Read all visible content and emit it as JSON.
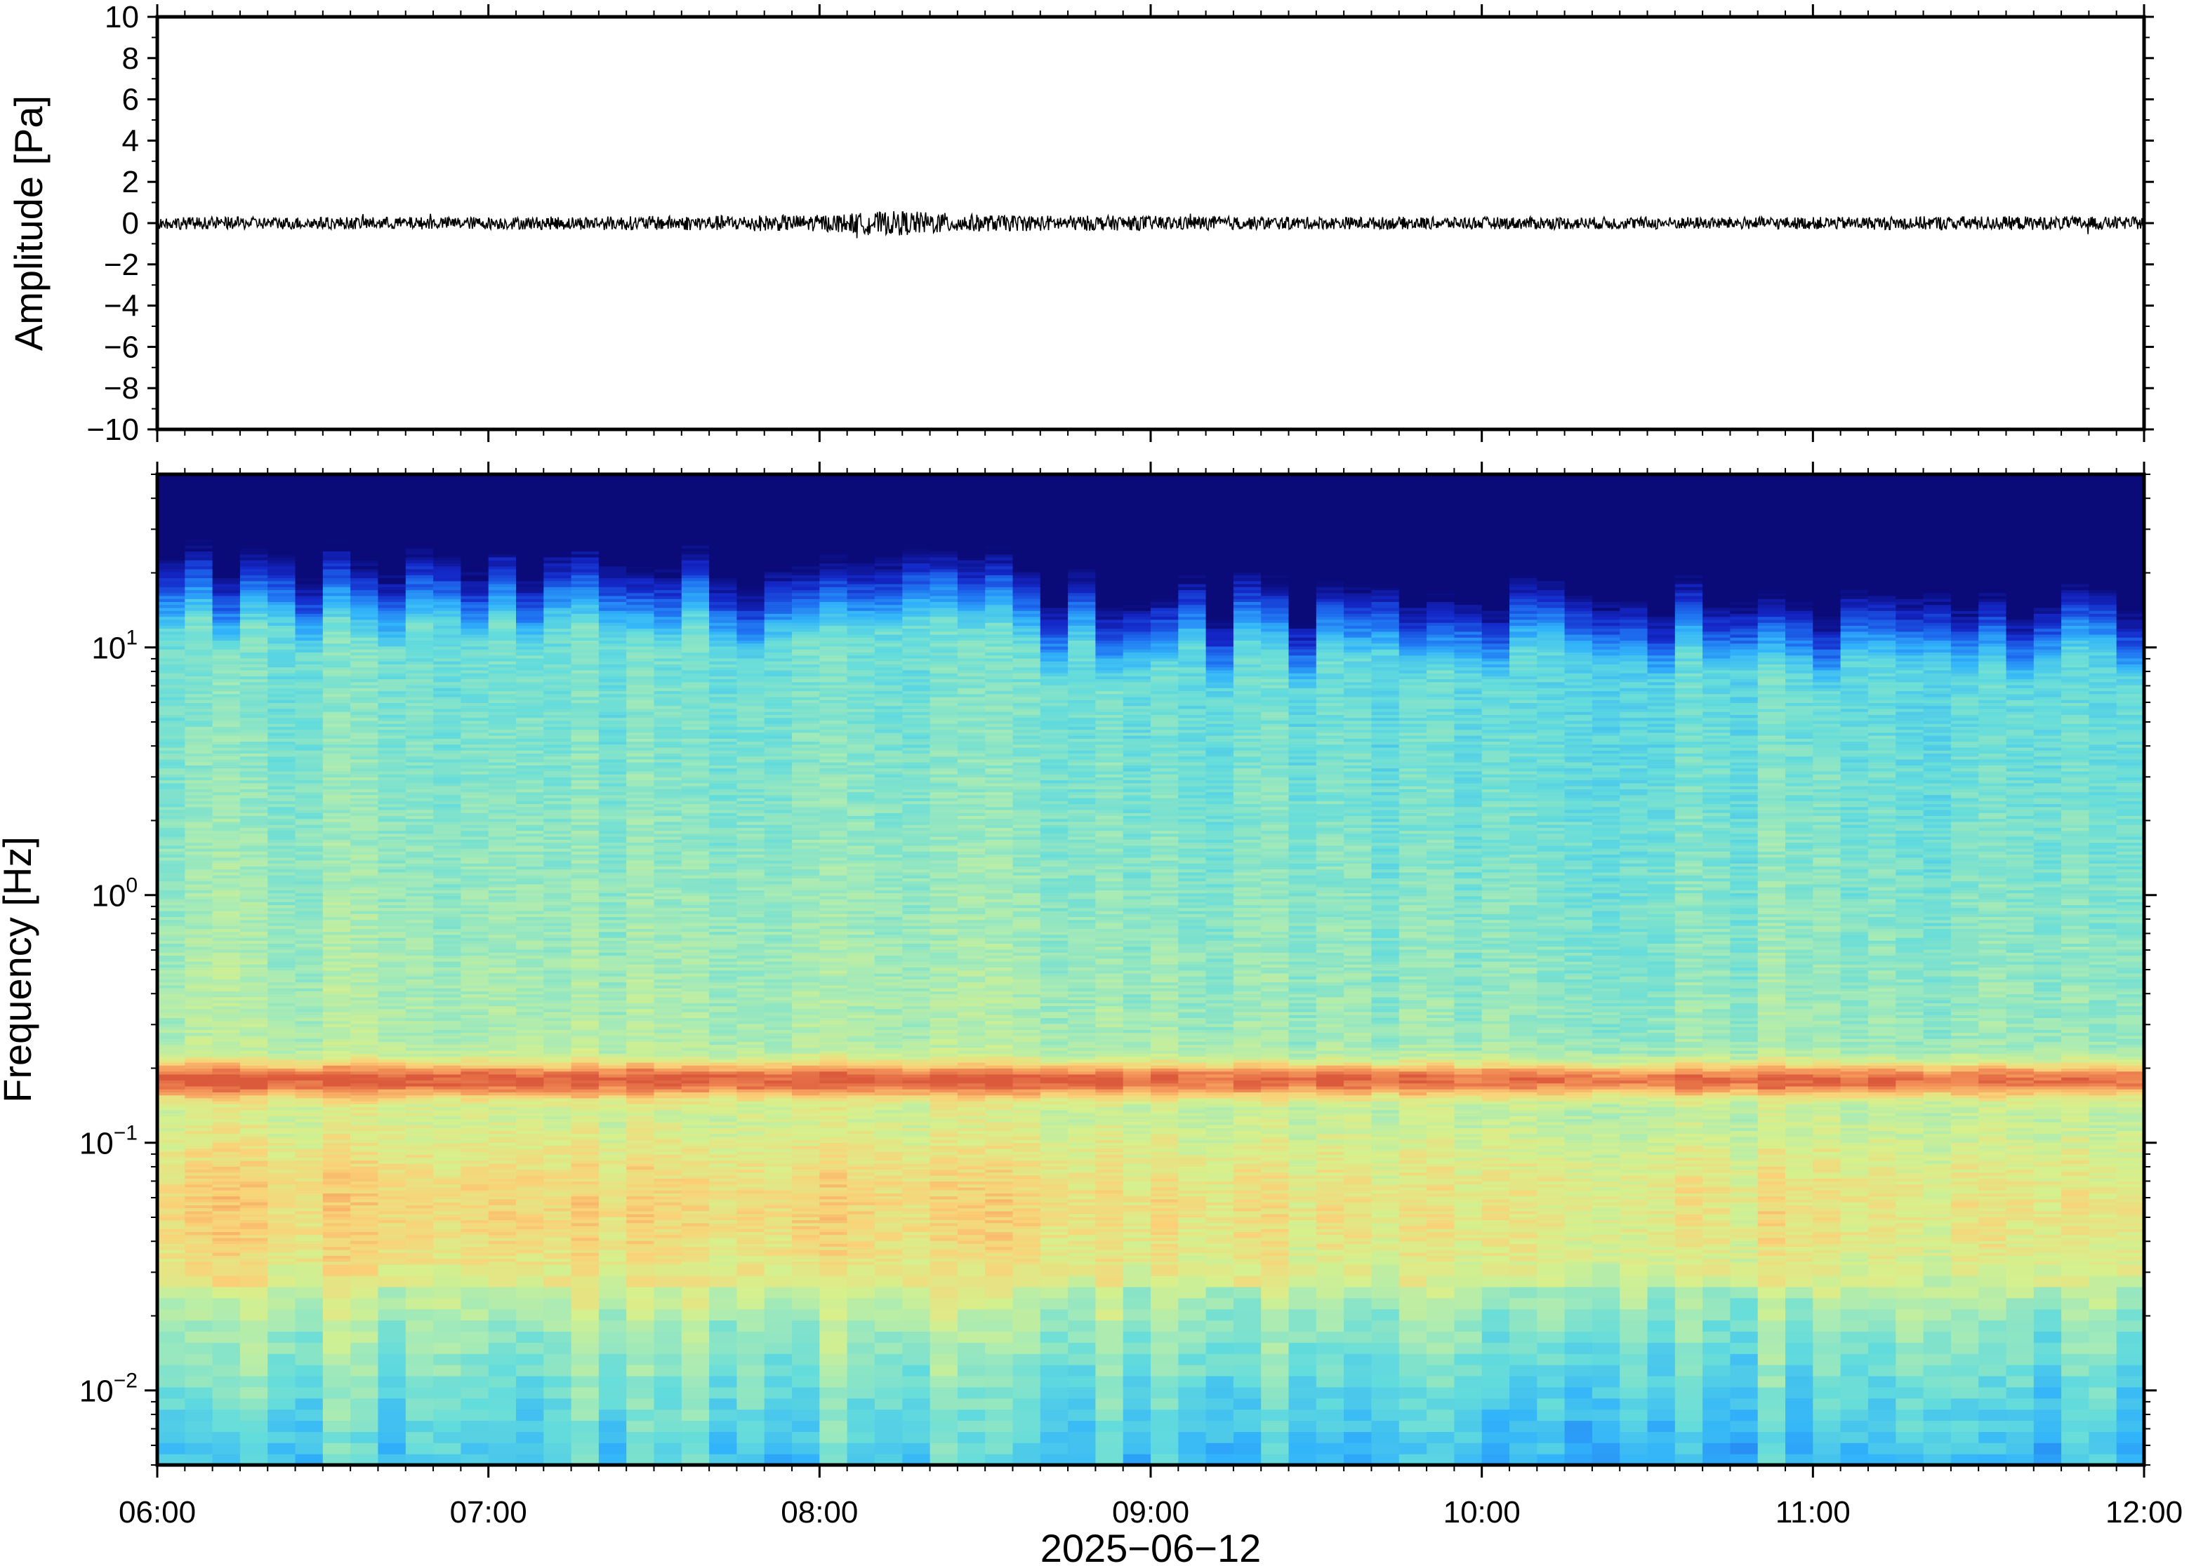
{
  "chart_data": [
    {
      "type": "line",
      "ylabel": "Amplitude [Pa]",
      "ylim": [
        -10,
        10
      ],
      "y_ticks": [
        -10,
        -8,
        -6,
        -4,
        -2,
        0,
        2,
        4,
        6,
        8,
        10
      ],
      "y_tick_labels": [
        "−10",
        "−8",
        "−6",
        "−4",
        "−2",
        "0",
        "2",
        "4",
        "6",
        "8",
        "10"
      ],
      "x_range": [
        "06:00",
        "12:00"
      ],
      "series": [
        {
          "color": "#000000",
          "description_of_values": "waveform near zero amplitude",
          "x_hours": [
            6.0,
            6.5,
            7.0,
            7.5,
            8.0,
            8.25,
            8.5,
            9.0,
            9.5,
            10.0,
            10.5,
            11.0,
            11.5,
            12.0
          ],
          "y_envelope": [
            0.3,
            0.3,
            0.3,
            0.35,
            0.4,
            0.6,
            0.4,
            0.35,
            0.3,
            0.3,
            0.3,
            0.3,
            0.35,
            0.3
          ]
        }
      ]
    },
    {
      "type": "heatmap",
      "ylabel": "Frequency [Hz]",
      "xlabel": "2025−06−12",
      "y_scale": "log",
      "ylim": [
        0.005,
        50
      ],
      "y_tick_labels": [
        {
          "base": "10",
          "exp": "−2",
          "value": 0.01
        },
        {
          "base": "10",
          "exp": "−1",
          "value": 0.1
        },
        {
          "base": "10",
          "exp": "0",
          "value": 1
        },
        {
          "base": "10",
          "exp": "1",
          "value": 10
        }
      ],
      "x_tick_labels": [
        "06:00",
        "07:00",
        "08:00",
        "09:00",
        "10:00",
        "11:00",
        "12:00"
      ],
      "x_tick_hours": [
        6,
        7,
        8,
        9,
        10,
        11,
        12
      ],
      "colormap": "jet (blue low → red high)",
      "colors": {
        "low": "#0a0a78",
        "blue": "#1e6ef0",
        "cyan": "#64dcdc",
        "yellow_green": "#d2eb8c",
        "orange": "#f5a05a",
        "red": "#dc5a3c"
      },
      "features": {
        "microbarom_band_hz": 0.18,
        "upper_cutoff_hz_range": [
          15,
          25
        ],
        "high_energy_band_hz": [
          0.03,
          0.12
        ],
        "low_freq_floor_hz": 0.01
      }
    }
  ]
}
